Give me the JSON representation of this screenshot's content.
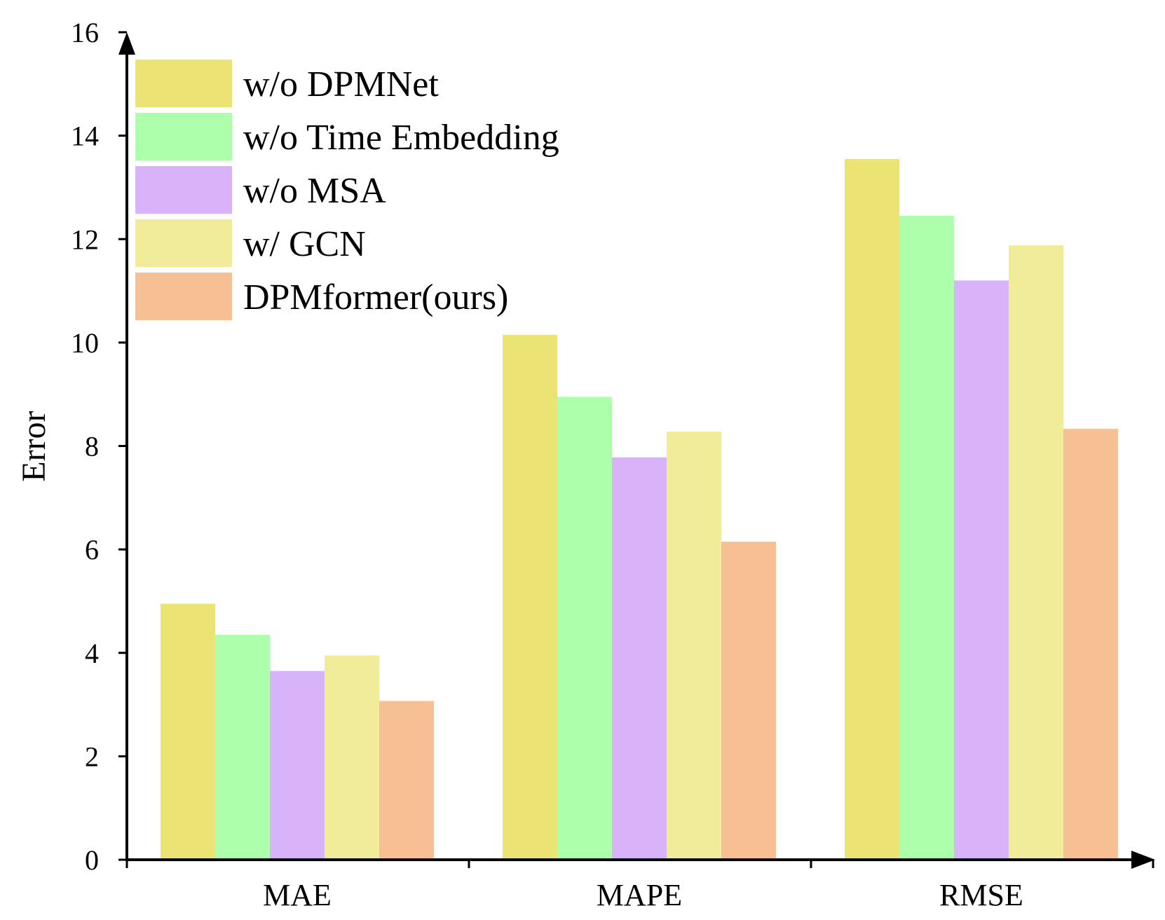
{
  "chart_data": {
    "type": "bar",
    "title": "",
    "xlabel": "",
    "ylabel": "Error",
    "ylim": [
      0,
      16
    ],
    "yticks": [
      0,
      2,
      4,
      6,
      8,
      10,
      12,
      14,
      16
    ],
    "grid": false,
    "legend_position": "top-left",
    "categories": [
      "MAE",
      "MAPE",
      "RMSE"
    ],
    "series": [
      {
        "name": "w/o DPMNet",
        "color": "#ebe373",
        "values": [
          4.95,
          10.15,
          13.55
        ]
      },
      {
        "name": "w/o Time Embedding",
        "color": "#adffab",
        "values": [
          4.35,
          8.95,
          12.45
        ]
      },
      {
        "name": "w/o MSA",
        "color": "#d8b3fa",
        "values": [
          3.65,
          7.78,
          11.2
        ]
      },
      {
        "name": "w/ GCN",
        "color": "#f1ec9a",
        "values": [
          3.95,
          8.28,
          11.88
        ]
      },
      {
        "name": "DPMformer(ours)",
        "color": "#f7bf94",
        "values": [
          3.07,
          6.15,
          8.33
        ]
      }
    ]
  }
}
